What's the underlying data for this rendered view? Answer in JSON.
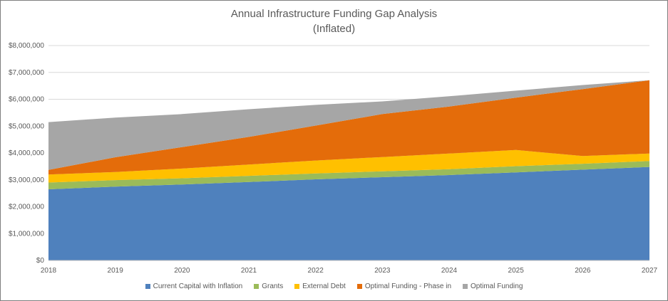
{
  "chart_data": {
    "type": "area",
    "stacked": true,
    "title": "Annual Infrastructure Funding Gap Analysis",
    "subtitle": "(Inflated)",
    "x": [
      "2018",
      "2019",
      "2020",
      "2021",
      "2022",
      "2023",
      "2024",
      "2025",
      "2026",
      "2027"
    ],
    "y_ticks": [
      "$0",
      "$1,000,000",
      "$2,000,000",
      "$3,000,000",
      "$4,000,000",
      "$5,000,000",
      "$6,000,000",
      "$7,000,000",
      "$8,000,000"
    ],
    "ylim": [
      0,
      8000000
    ],
    "grid": true,
    "legend_position": "bottom",
    "series": [
      {
        "name": "Current Capital with Inflation",
        "color": "#4f81bd",
        "values": [
          2650000,
          2750000,
          2830000,
          2920000,
          3020000,
          3100000,
          3180000,
          3280000,
          3380000,
          3480000
        ]
      },
      {
        "name": "Grants",
        "color": "#9bbb59",
        "values": [
          250000,
          240000,
          230000,
          230000,
          220000,
          220000,
          220000,
          230000,
          220000,
          220000
        ]
      },
      {
        "name": "External Debt",
        "color": "#ffc000",
        "values": [
          300000,
          300000,
          360000,
          420000,
          480000,
          530000,
          580000,
          600000,
          290000,
          280000
        ]
      },
      {
        "name": "Optimal Funding - Phase in",
        "color": "#e46c0a",
        "values": [
          170000,
          550000,
          800000,
          1030000,
          1300000,
          1600000,
          1750000,
          1950000,
          2490000,
          2730000
        ]
      },
      {
        "name": "Optimal Funding",
        "color": "#a6a6a6",
        "values": [
          1780000,
          1480000,
          1230000,
          1030000,
          770000,
          470000,
          380000,
          260000,
          150000,
          0
        ]
      }
    ]
  }
}
